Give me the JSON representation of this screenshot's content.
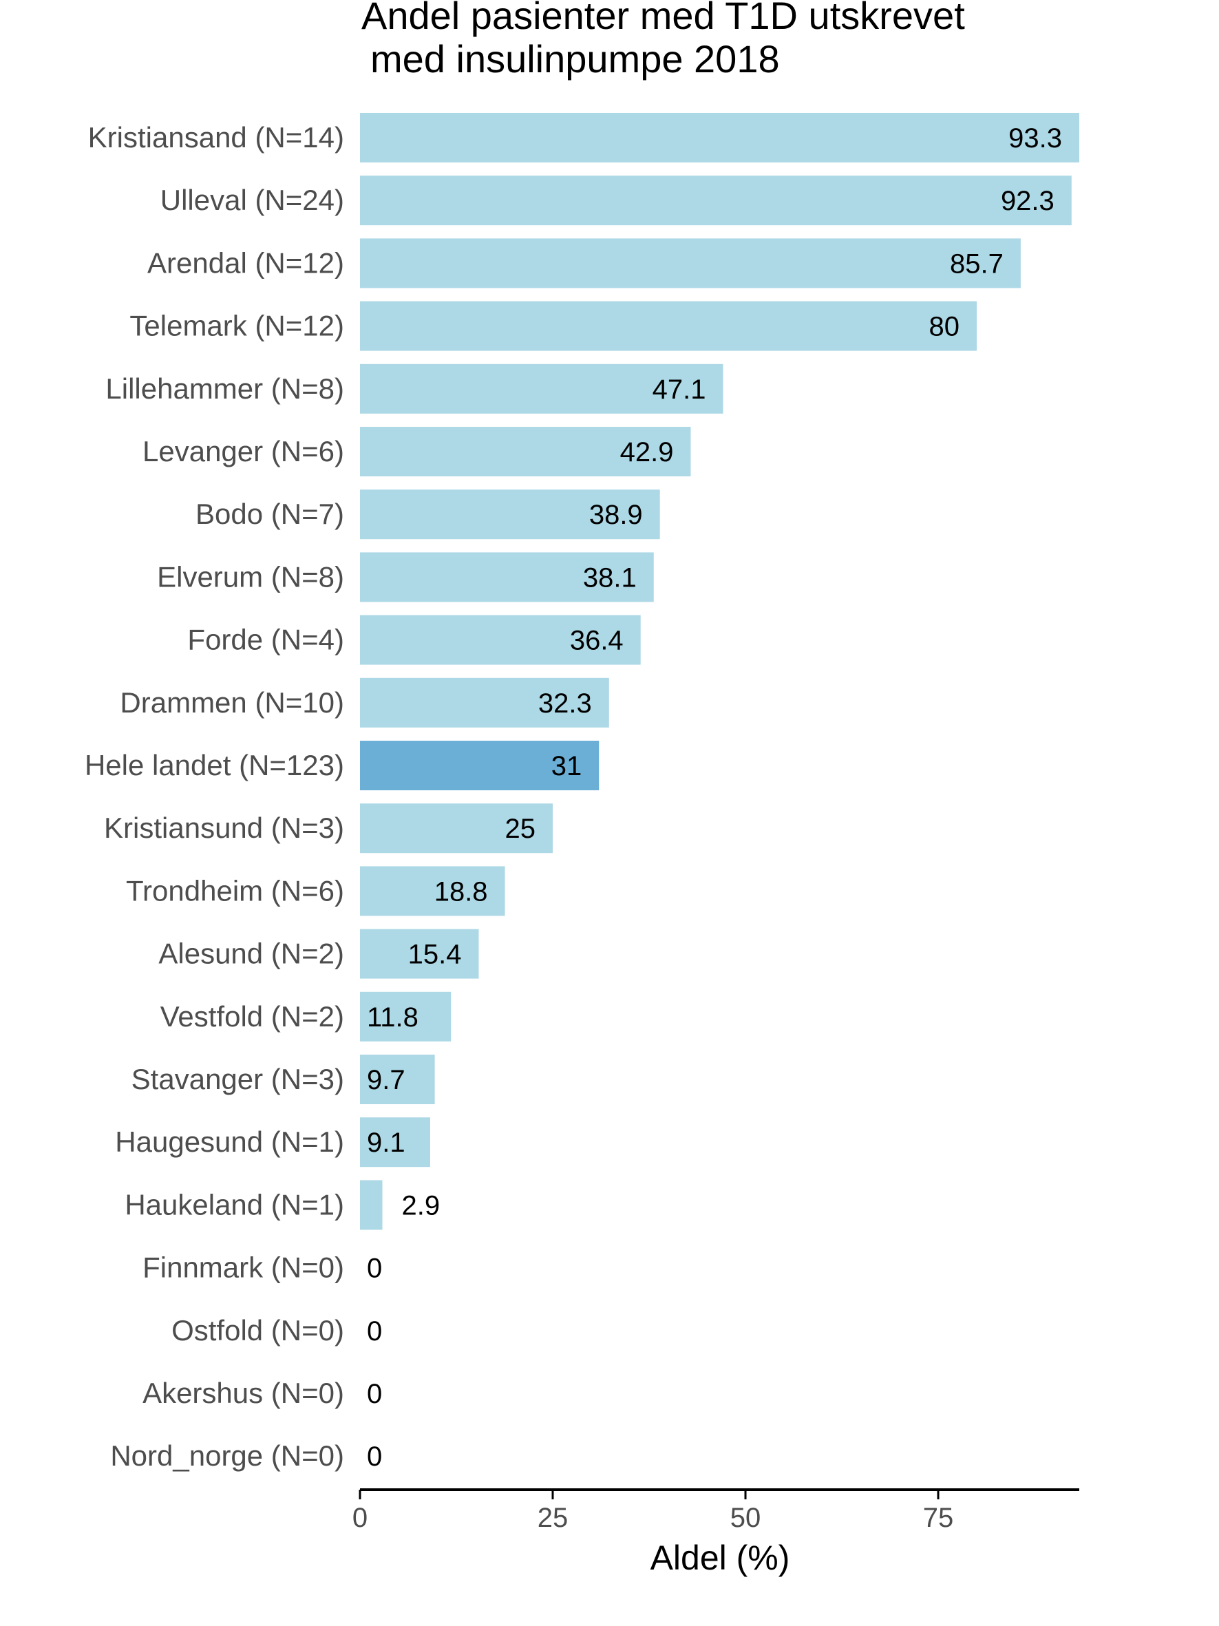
{
  "chart_data": {
    "type": "bar",
    "orientation": "horizontal",
    "title": [
      "Andel pasienter med T1D utskrevet",
      "med insulinpumpe 2018"
    ],
    "xlabel": "Aldel (%)",
    "ylabel": "",
    "xlim": [
      0,
      93.3
    ],
    "xticks": [
      0,
      25,
      50,
      75
    ],
    "grid": false,
    "legend": "none",
    "categories": [
      "Kristiansand (N=14)",
      "Ulleval (N=24)",
      "Arendal (N=12)",
      "Telemark (N=12)",
      "Lillehammer (N=8)",
      "Levanger (N=6)",
      "Bodo (N=7)",
      "Elverum (N=8)",
      "Forde (N=4)",
      "Drammen (N=10)",
      "Hele landet (N=123)",
      "Kristiansund (N=3)",
      "Trondheim (N=6)",
      "Alesund (N=2)",
      "Vestfold (N=2)",
      "Stavanger (N=3)",
      "Haugesund (N=1)",
      "Haukeland (N=1)",
      "Finnmark (N=0)",
      "Ostfold (N=0)",
      "Akershus (N=0)",
      "Nord_norge (N=0)"
    ],
    "values": [
      93.3,
      92.3,
      85.7,
      80,
      47.1,
      42.9,
      38.9,
      38.1,
      36.4,
      32.3,
      31,
      25,
      18.8,
      15.4,
      11.8,
      9.7,
      9.1,
      2.9,
      0,
      0,
      0,
      0
    ],
    "value_labels": [
      "93.3",
      "92.3",
      "85.7",
      "80",
      "47.1",
      "42.9",
      "38.9",
      "38.1",
      "36.4",
      "32.3",
      "31",
      "25",
      "18.8",
      "15.4",
      "11.8",
      "9.7",
      "9.1",
      "2.9",
      "0",
      "0",
      "0",
      "0"
    ],
    "highlight_category": "Hele landet (N=123)",
    "colors": {
      "bar": "#add8e6",
      "highlight": "#6baed6",
      "axis": "#000000",
      "text": "#4d4d4d"
    }
  }
}
